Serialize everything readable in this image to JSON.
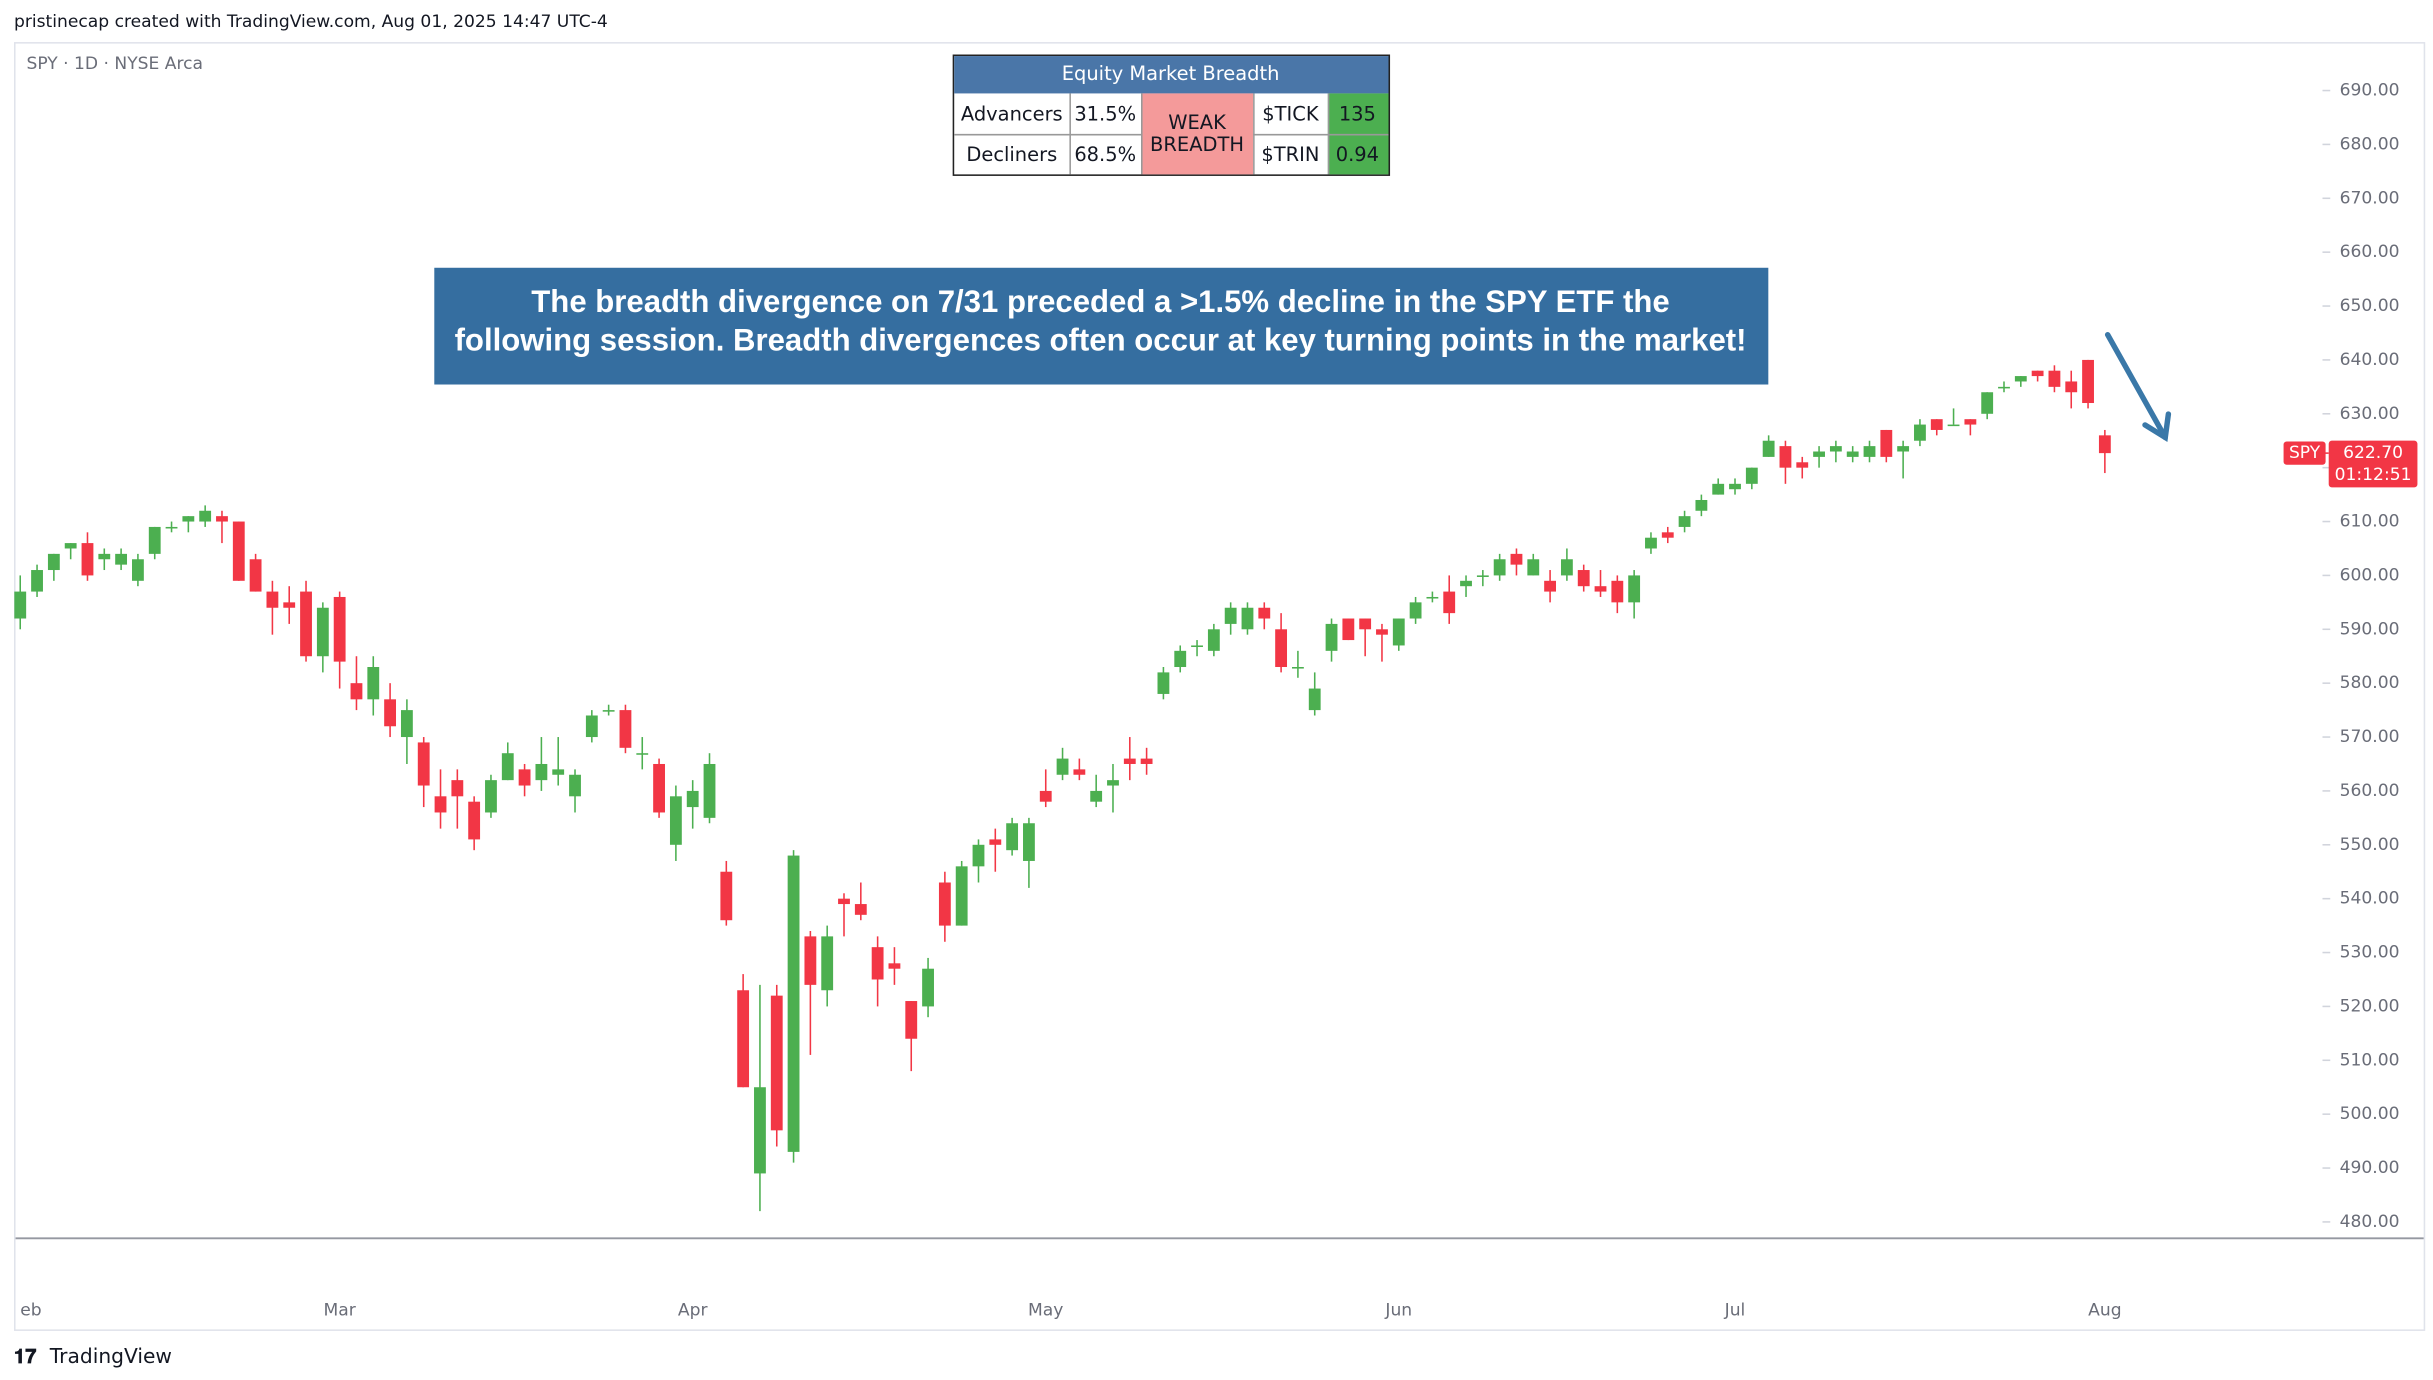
{
  "header": {
    "text": "pristinecap created with TradingView.com, Aug 01, 2025 14:47 UTC-4",
    "symbol_info": "SPY · 1D · NYSE Arca",
    "footer": "TradingView"
  },
  "breadth_table": {
    "title": "Equity Market Breadth",
    "rows": [
      [
        "Advancers",
        "31.5%",
        "$TICK",
        "135"
      ],
      [
        "Decliners",
        "68.5%",
        "$TRIN",
        "0.94"
      ]
    ],
    "status": "WEAK BREADTH"
  },
  "annotation": {
    "lines": [
      "The breadth divergence on 7/31 preceded a >1.5% decline in the SPY ETF the",
      "following session. Breadth divergences often occur at key turning points in the market!"
    ]
  },
  "chart_data": {
    "type": "candlestick",
    "categories": [
      "eb",
      null,
      null,
      null,
      null,
      null,
      null,
      null,
      null,
      null,
      null,
      null,
      null,
      null,
      null,
      null,
      null,
      null,
      null,
      "Mar",
      null,
      null,
      null,
      null,
      null,
      null,
      null,
      null,
      null,
      null,
      null,
      null,
      null,
      null,
      null,
      null,
      null,
      null,
      null,
      null,
      "Apr",
      null,
      null,
      null,
      null,
      null,
      null,
      null,
      null,
      null,
      null,
      null,
      null,
      null,
      null,
      null,
      null,
      null,
      null,
      null,
      null,
      "May",
      null,
      null,
      null,
      null,
      null,
      null,
      null,
      null,
      null,
      null,
      null,
      null,
      null,
      null,
      null,
      null,
      null,
      null,
      null,
      null,
      "Jun",
      null,
      null,
      null,
      null,
      null,
      null,
      null,
      null,
      null,
      null,
      null,
      null,
      null,
      null,
      null,
      null,
      null,
      null,
      null,
      "Jul",
      null,
      null,
      null,
      null,
      null,
      null,
      null,
      null,
      null,
      null,
      null,
      null,
      null,
      null,
      null,
      null,
      null,
      null,
      null,
      null,
      null,
      "Aug"
    ],
    "open": [
      592,
      597,
      601,
      605,
      606,
      603,
      602,
      599,
      604,
      609,
      610,
      610,
      611,
      610,
      603,
      597,
      595,
      597,
      585,
      596,
      580,
      577,
      577,
      570,
      569,
      559,
      562,
      558,
      556,
      562,
      564,
      562,
      563,
      559,
      570,
      575,
      575,
      567,
      565,
      550,
      557,
      555,
      545,
      523,
      489,
      522,
      493,
      533,
      523,
      540,
      539,
      531,
      528,
      521,
      520,
      543,
      535,
      546,
      551,
      549,
      547,
      560,
      563,
      564,
      558,
      561,
      566,
      566,
      578,
      583,
      587,
      586,
      591,
      590,
      594,
      590,
      583,
      575,
      586,
      592,
      592,
      590,
      587,
      592,
      596,
      597,
      598,
      600,
      600,
      604,
      600,
      599,
      600,
      601,
      598,
      599,
      595,
      605,
      608,
      609,
      612,
      615,
      616,
      617,
      622,
      624,
      621,
      622,
      623,
      622,
      622,
      627,
      623,
      625,
      629,
      628,
      629,
      630,
      635,
      636,
      638,
      638,
      636,
      640,
      626
    ],
    "high": [
      600,
      602,
      604,
      606,
      608,
      605,
      605,
      604,
      609,
      610,
      611,
      613,
      612,
      610,
      604,
      599,
      598,
      599,
      595,
      597,
      585,
      585,
      580,
      577,
      570,
      564,
      564,
      559,
      563,
      569,
      565,
      570,
      570,
      564,
      575,
      576,
      576,
      570,
      566,
      561,
      562,
      567,
      547,
      526,
      524,
      524,
      549,
      534,
      535,
      541,
      543,
      533,
      531,
      521,
      529,
      545,
      547,
      551,
      553,
      555,
      555,
      564,
      568,
      566,
      563,
      565,
      570,
      568,
      583,
      587,
      588,
      591,
      595,
      595,
      595,
      593,
      586,
      582,
      592,
      592,
      592,
      591,
      592,
      596,
      597,
      600,
      600,
      601,
      604,
      605,
      604,
      601,
      605,
      602,
      601,
      600,
      601,
      608,
      609,
      612,
      615,
      618,
      618,
      620,
      626,
      625,
      622,
      624,
      625,
      624,
      625,
      627,
      625,
      629,
      629,
      631,
      629,
      634,
      636,
      637,
      638,
      639,
      638,
      640,
      627
    ],
    "low": [
      590,
      596,
      599,
      603,
      599,
      601,
      601,
      598,
      603,
      608,
      608,
      609,
      606,
      599,
      597,
      589,
      591,
      584,
      582,
      579,
      575,
      574,
      570,
      565,
      557,
      553,
      553,
      549,
      555,
      562,
      559,
      560,
      561,
      556,
      569,
      574,
      567,
      564,
      555,
      547,
      553,
      554,
      535,
      505,
      482,
      494,
      491,
      511,
      520,
      533,
      536,
      520,
      524,
      508,
      518,
      532,
      535,
      543,
      545,
      548,
      542,
      557,
      562,
      562,
      557,
      556,
      562,
      563,
      577,
      582,
      585,
      585,
      589,
      589,
      590,
      582,
      581,
      574,
      584,
      588,
      585,
      584,
      586,
      591,
      595,
      591,
      596,
      598,
      599,
      600,
      600,
      595,
      599,
      597,
      596,
      593,
      592,
      604,
      606,
      608,
      611,
      615,
      615,
      616,
      622,
      617,
      618,
      620,
      621,
      621,
      621,
      621,
      618,
      624,
      626,
      628,
      626,
      629,
      634,
      635,
      636,
      634,
      631,
      631,
      619
    ],
    "close": [
      597,
      601,
      604,
      606,
      600,
      604,
      604,
      603,
      609,
      609,
      611,
      612,
      610,
      599,
      597,
      594,
      594,
      585,
      594,
      584,
      577,
      583,
      572,
      575,
      561,
      556,
      559,
      551,
      562,
      567,
      561,
      565,
      564,
      563,
      574,
      575,
      568,
      567,
      556,
      559,
      560,
      565,
      536,
      505,
      505,
      497,
      548,
      524,
      533,
      539,
      537,
      525,
      527,
      514,
      527,
      535,
      546,
      550,
      550,
      554,
      554,
      558,
      566,
      563,
      560,
      562,
      565,
      565,
      582,
      586,
      587,
      590,
      594,
      594,
      592,
      583,
      583,
      579,
      591,
      588,
      590,
      589,
      592,
      595,
      596,
      593,
      599,
      600,
      603,
      602,
      603,
      597,
      603,
      598,
      597,
      595,
      600,
      607,
      607,
      611,
      614,
      617,
      617,
      620,
      625,
      620,
      620,
      623,
      624,
      623,
      624,
      622,
      624,
      628,
      627,
      628,
      628,
      634,
      635,
      637,
      637,
      635,
      634,
      632,
      622.7
    ],
    "up_color": "#4caf50",
    "down_color": "#f23645",
    "ylim": [
      477.1,
      699
    ],
    "yticks": [
      {
        "value": 480,
        "label": "480.00"
      },
      {
        "value": 490,
        "label": "490.00"
      },
      {
        "value": 500,
        "label": "500.00"
      },
      {
        "value": 510,
        "label": "510.00"
      },
      {
        "value": 520,
        "label": "520.00"
      },
      {
        "value": 530,
        "label": "530.00"
      },
      {
        "value": 540,
        "label": "540.00"
      },
      {
        "value": 550,
        "label": "550.00"
      },
      {
        "value": 560,
        "label": "560.00"
      },
      {
        "value": 570,
        "label": "570.00"
      },
      {
        "value": 580,
        "label": "580.00"
      },
      {
        "value": 590,
        "label": "590.00"
      },
      {
        "value": 600,
        "label": "600.00"
      },
      {
        "value": 610,
        "label": "610.00"
      },
      {
        "value": 620,
        "label": "620.00"
      },
      {
        "value": 630,
        "label": "630.00"
      },
      {
        "value": 640,
        "label": "640.00"
      },
      {
        "value": 650,
        "label": "650.00"
      },
      {
        "value": 660,
        "label": "660.00"
      },
      {
        "value": 670,
        "label": "670.00"
      },
      {
        "value": 680,
        "label": "680.00"
      },
      {
        "value": 690,
        "label": "690.00"
      }
    ],
    "last_price": {
      "value": 622.7,
      "label": "622.70",
      "symbol": "SPY",
      "countdown": "01:12:51"
    },
    "grid": false
  }
}
